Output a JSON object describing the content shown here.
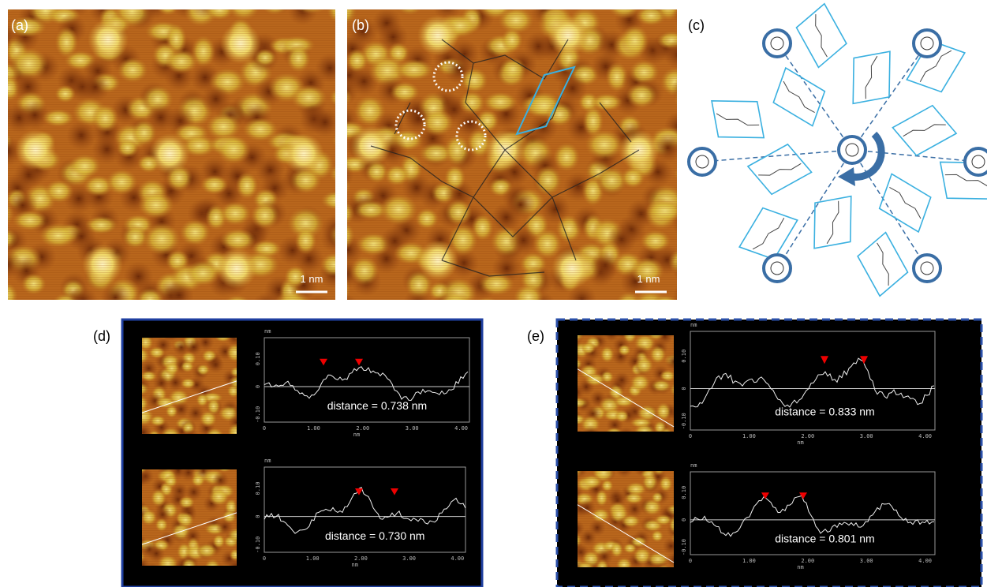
{
  "panels": {
    "a": {
      "label": "(a)",
      "scale_bar": "1 nm"
    },
    "b": {
      "label": "(b)",
      "scale_bar": "1 nm"
    },
    "c": {
      "label": "(c)"
    },
    "d": {
      "label": "(d)",
      "profiles": [
        {
          "y_unit": "nm",
          "x_unit": "nm",
          "yticks": [
            "0.10",
            "0",
            "-0.10"
          ],
          "xticks": [
            "0",
            "1.00",
            "2.00",
            "3.00",
            "4.00"
          ],
          "distance": "distance = 0.738 nm"
        },
        {
          "y_unit": "nm",
          "x_unit": "nm",
          "yticks": [
            "0.10",
            "0",
            "-0.10"
          ],
          "xticks": [
            "0",
            "1.00",
            "2.00",
            "3.00",
            "4.00"
          ],
          "distance": "distance = 0.730 nm"
        }
      ]
    },
    "e": {
      "label": "(e)",
      "profiles": [
        {
          "y_unit": "nm",
          "x_unit": "nm",
          "yticks": [
            "0.10",
            "0",
            "-0.10"
          ],
          "xticks": [
            "0",
            "1.00",
            "2.00",
            "3.00",
            "4.00"
          ],
          "distance": "distance = 0.833 nm"
        },
        {
          "y_unit": "nm",
          "x_unit": "nm",
          "yticks": [
            "0.10",
            "0",
            "-0.10"
          ],
          "xticks": [
            "0",
            "1.00",
            "2.00",
            "3.00",
            "4.00"
          ],
          "distance": "distance = 0.801 nm"
        }
      ]
    }
  }
}
